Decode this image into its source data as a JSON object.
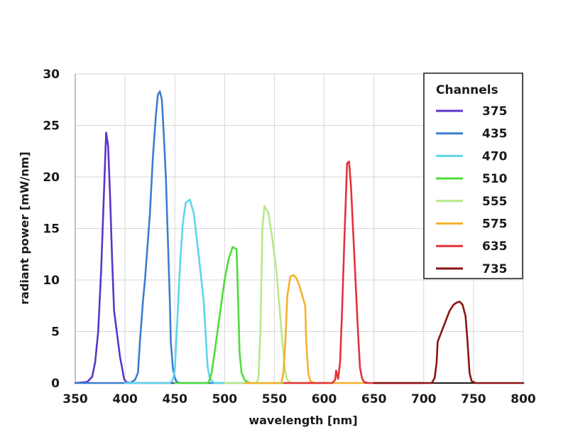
{
  "chart_data": {
    "type": "line",
    "xlabel": "wavelength [nm]",
    "ylabel": "radiant power [mW/nm]",
    "xlim": [
      350,
      800
    ],
    "ylim": [
      0,
      30
    ],
    "xticks": [
      350,
      400,
      450,
      500,
      550,
      600,
      650,
      700,
      750,
      800
    ],
    "yticks": [
      0,
      5,
      10,
      15,
      20,
      25,
      30
    ],
    "grid": true,
    "legend": {
      "title": "Channels",
      "placement": "top-right"
    },
    "series": [
      {
        "name": "375",
        "color": "#5b35c8",
        "x": [
          350,
          362,
          367,
          370,
          373,
          376,
          379,
          381,
          383,
          385,
          387,
          389,
          391,
          393,
          395,
          397,
          399,
          401,
          405,
          450
        ],
        "y": [
          0,
          0.1,
          0.6,
          2,
          5,
          11,
          19,
          24.3,
          23,
          18,
          12,
          7,
          5.5,
          4,
          2.5,
          1.5,
          0.4,
          0.1,
          0,
          0
        ]
      },
      {
        "name": "435",
        "color": "#3c7dd1",
        "x": [
          350,
          405,
          410,
          413,
          415,
          418,
          420,
          425,
          428,
          431,
          433,
          435,
          437,
          439,
          441,
          443,
          445,
          446,
          448,
          450,
          452,
          455,
          500
        ],
        "y": [
          0,
          0,
          0.3,
          1,
          4,
          8,
          10,
          16.5,
          22,
          26,
          28,
          28.3,
          27.5,
          24,
          20,
          14,
          8,
          4,
          1.5,
          0.5,
          0.1,
          0,
          0
        ]
      },
      {
        "name": "470",
        "color": "#5dd6ea",
        "x": [
          400,
          445,
          448,
          450,
          452,
          455,
          458,
          461,
          465,
          469,
          472,
          475,
          479,
          482,
          483,
          485,
          488,
          490,
          530
        ],
        "y": [
          0,
          0,
          0.3,
          1.2,
          5,
          11,
          15.5,
          17.5,
          17.8,
          16.5,
          14,
          11.5,
          8,
          3,
          1.5,
          0.5,
          0.1,
          0,
          0
        ]
      },
      {
        "name": "510",
        "color": "#4fdc3a",
        "x": [
          450,
          483,
          485,
          487,
          490,
          495,
          500,
          504,
          508,
          512,
          513,
          515,
          517,
          520,
          525,
          560
        ],
        "y": [
          0,
          0,
          0.3,
          1,
          3,
          6.5,
          10,
          12,
          13.2,
          13,
          10,
          3,
          1,
          0.3,
          0,
          0
        ]
      },
      {
        "name": "555",
        "color": "#b8e88a",
        "x": [
          500,
          532,
          534,
          536,
          538,
          540,
          544,
          548,
          552,
          555,
          558,
          561,
          563,
          565,
          568,
          600
        ],
        "y": [
          0,
          0,
          0.5,
          5,
          15,
          17.2,
          16.5,
          14,
          11,
          7.5,
          4,
          1,
          0.3,
          0.1,
          0,
          0
        ]
      },
      {
        "name": "575",
        "color": "#f5b12c",
        "x": [
          520,
          557,
          559,
          561,
          563,
          566,
          569,
          572,
          575,
          578,
          581,
          582,
          584,
          586,
          590,
          640
        ],
        "y": [
          0,
          0,
          1,
          4,
          8.5,
          10.3,
          10.5,
          10.2,
          9.5,
          8.5,
          7.5,
          4,
          1,
          0.2,
          0,
          0
        ]
      },
      {
        "name": "635",
        "color": "#e4323a",
        "x": [
          560,
          608,
          611,
          612,
          614,
          616,
          618,
          620,
          622,
          623,
          625,
          627,
          629,
          631,
          634,
          636,
          638,
          640,
          644,
          700
        ],
        "y": [
          0,
          0,
          0.3,
          1.2,
          0.4,
          2,
          7,
          13,
          18.5,
          21.3,
          21.5,
          19,
          15,
          11,
          5,
          1.5,
          0.5,
          0.1,
          0,
          0
        ]
      },
      {
        "name": "735",
        "color": "#8a1414",
        "x": [
          650,
          708,
          711,
          713,
          714,
          718,
          722,
          726,
          730,
          733,
          736,
          739,
          742,
          744,
          746,
          748,
          752,
          800
        ],
        "y": [
          0,
          0,
          0.5,
          2,
          4,
          5,
          6,
          7,
          7.6,
          7.8,
          7.9,
          7.6,
          6.5,
          4,
          1,
          0.2,
          0,
          0
        ]
      }
    ]
  }
}
